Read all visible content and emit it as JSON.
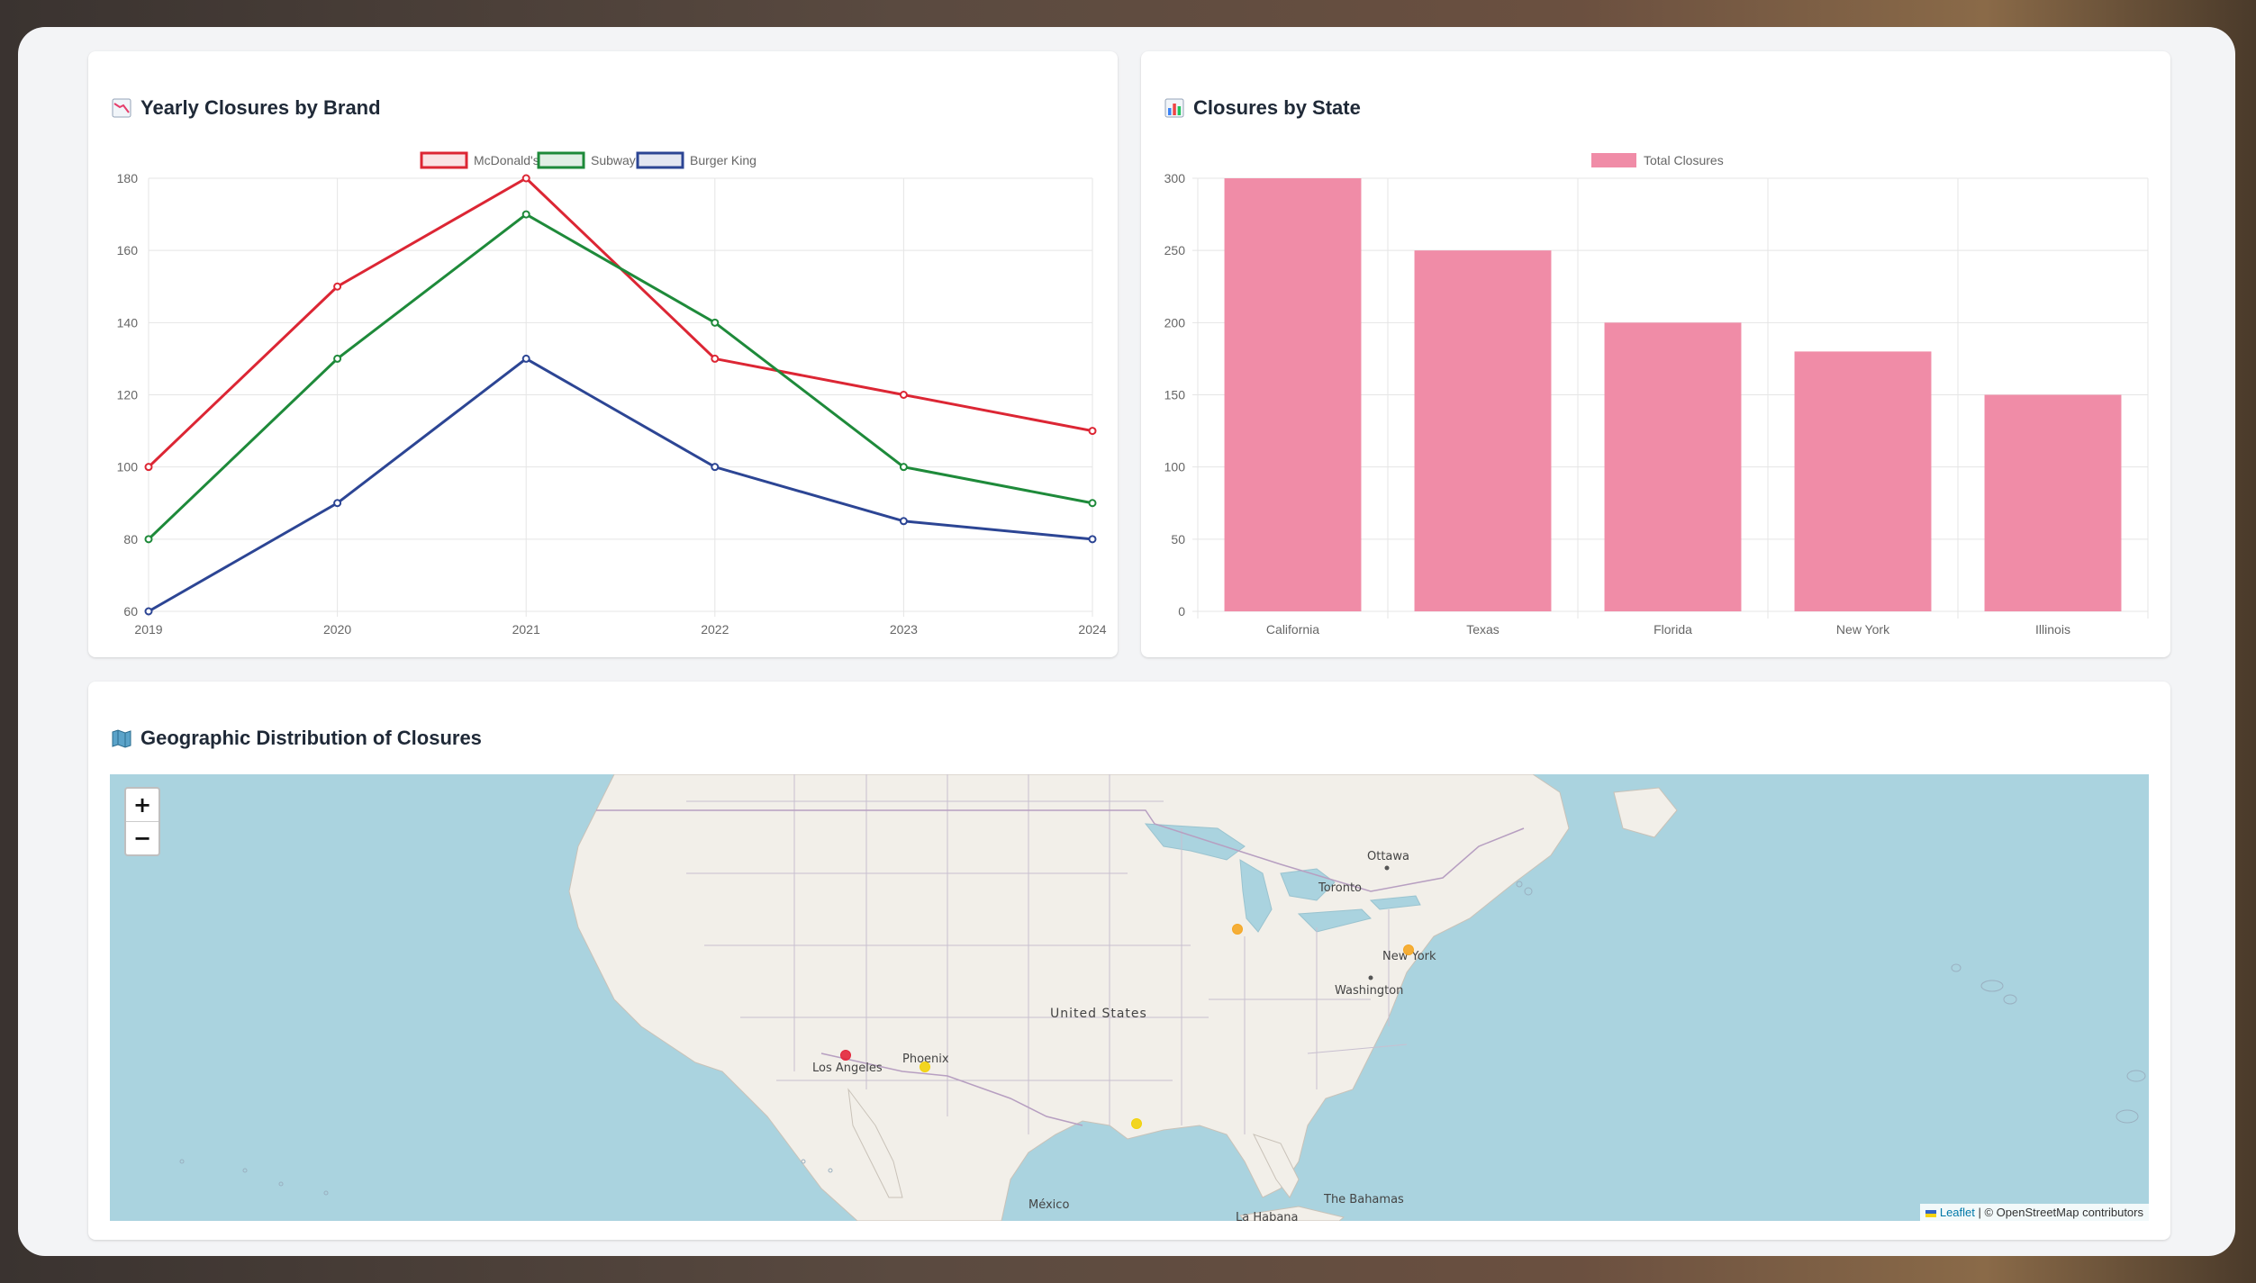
{
  "line_card": {
    "title": "Yearly Closures by Brand",
    "icon": "chart-decreasing-icon"
  },
  "bar_card": {
    "title": "Closures by State",
    "icon": "bar-chart-icon"
  },
  "map_card": {
    "title": "Geographic Distribution of Closures",
    "icon": "map-icon",
    "zoom_in": "+",
    "zoom_out": "−",
    "attribution_link": "Leaflet",
    "attribution_text": " | © OpenStreetMap contributors",
    "labels": [
      "Ottawa",
      "Toronto",
      "New York",
      "Washington",
      "United States",
      "Phoenix",
      "Los Angeles",
      "México",
      "La Habana",
      "The Bahamas"
    ],
    "markers": [
      {
        "city": "Los Angeles",
        "color": "#e3263b"
      },
      {
        "city": "Phoenix",
        "color": "#f2d20a"
      },
      {
        "city": "Chicago",
        "color": "#f5a623"
      },
      {
        "city": "New York",
        "color": "#f5a623"
      },
      {
        "city": "Houston",
        "color": "#f2d20a"
      }
    ]
  },
  "chart_data": [
    {
      "type": "line",
      "x": [
        "2019",
        "2020",
        "2021",
        "2022",
        "2023",
        "2024"
      ],
      "series": [
        {
          "name": "McDonald's",
          "color": "#dc2634",
          "values": [
            100,
            150,
            180,
            130,
            120,
            110
          ]
        },
        {
          "name": "Subway",
          "color": "#1e8a3a",
          "values": [
            80,
            130,
            170,
            140,
            100,
            90
          ]
        },
        {
          "name": "Burger King",
          "color": "#2c4594",
          "values": [
            60,
            90,
            130,
            100,
            85,
            80
          ]
        }
      ],
      "ylim": [
        60,
        180
      ],
      "yticks": [
        60,
        80,
        100,
        120,
        140,
        160,
        180
      ],
      "grid": true,
      "legend": "top"
    },
    {
      "type": "bar",
      "categories": [
        "California",
        "Texas",
        "Florida",
        "New York",
        "Illinois"
      ],
      "series": [
        {
          "name": "Total Closures",
          "color": "#f08ca7",
          "values": [
            300,
            250,
            200,
            180,
            150
          ]
        }
      ],
      "ylim": [
        0,
        300
      ],
      "yticks": [
        0,
        50,
        100,
        150,
        200,
        250,
        300
      ],
      "grid": true,
      "legend": "top"
    }
  ]
}
